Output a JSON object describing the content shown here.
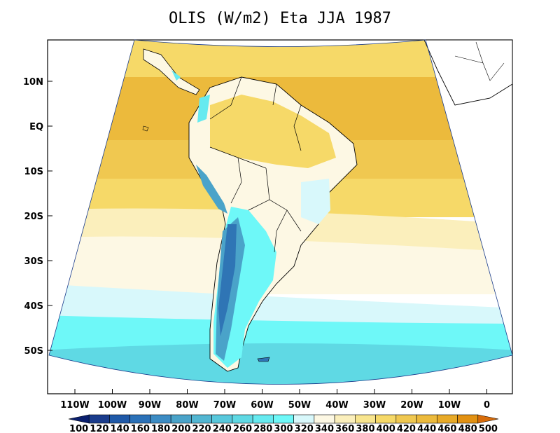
{
  "title": "OLIS (W/m2) Eta JJA 1987",
  "lat_labels": [
    "10N",
    "EQ",
    "10S",
    "20S",
    "30S",
    "40S",
    "50S"
  ],
  "lon_labels": [
    "110W",
    "100W",
    "90W",
    "80W",
    "70W",
    "60W",
    "50W",
    "40W",
    "30W",
    "20W",
    "10W",
    "0"
  ],
  "colorbar": {
    "labels": [
      "100",
      "120",
      "140",
      "160",
      "180",
      "200",
      "220",
      "240",
      "260",
      "280",
      "300",
      "320",
      "340",
      "360",
      "380",
      "400",
      "420",
      "440",
      "460",
      "480",
      "500"
    ],
    "colors": [
      "#0a1f6e",
      "#1a3c8c",
      "#1f59a8",
      "#2b71b8",
      "#3c8cc4",
      "#4aa3c9",
      "#52b6d2",
      "#58c8dc",
      "#5fd9e4",
      "#66eaf0",
      "#6ef8f8",
      "#d8f8fb",
      "#fdf8e4",
      "#fbefbc",
      "#f8e58e",
      "#f6d968",
      "#f0c850",
      "#ecba3c",
      "#e8aa28",
      "#e29112",
      "#d86c0a"
    ]
  },
  "colors": {
    "land_dark": "#2f75b5",
    "land_mid": "#4aa3c9",
    "ocean_south": "#6ef8f8",
    "ocean_cream": "#fdf8e4",
    "ocean_yellow": "#f6d968",
    "ocean_gold": "#ecba3c"
  }
}
